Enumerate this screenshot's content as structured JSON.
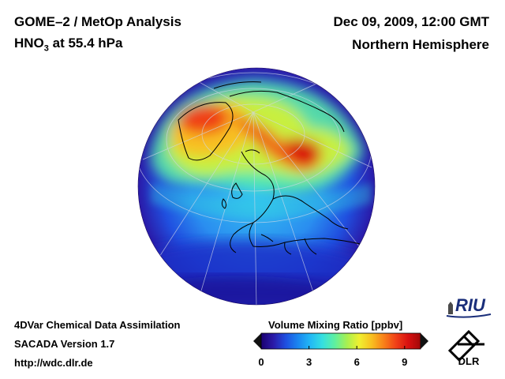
{
  "header": {
    "title": "GOME–2 / MetOp Analysis",
    "species_base": "HNO",
    "species_sub": "3",
    "species_rest": " at 55.4 hPa",
    "date": "Dec 09, 2009, 12:00 GMT",
    "region": "Northern Hemisphere"
  },
  "footer": {
    "line1": "4DVar Chemical Data Assimilation",
    "line2": "SACADA Version 1.7",
    "line3": "http://wdc.dlr.de"
  },
  "colorbar": {
    "title": "Volume Mixing Ratio [ppbv]",
    "min": 0,
    "max": 10,
    "ticks": [
      "0",
      "3",
      "6",
      "9"
    ],
    "colors": [
      "#1a0070",
      "#2a1aa8",
      "#1f4fe0",
      "#1a86f0",
      "#22b8f5",
      "#35dfe0",
      "#5ef0a0",
      "#a8f050",
      "#f0f030",
      "#f8c020",
      "#f88018",
      "#f04018",
      "#d81010",
      "#a00808"
    ]
  },
  "logos": {
    "riu": "RIU",
    "dlr": "DLR"
  },
  "icons": {
    "globe": "hemisphere-map",
    "dlr": "dlr-logo-icon",
    "riu": "riu-logo-icon"
  }
}
